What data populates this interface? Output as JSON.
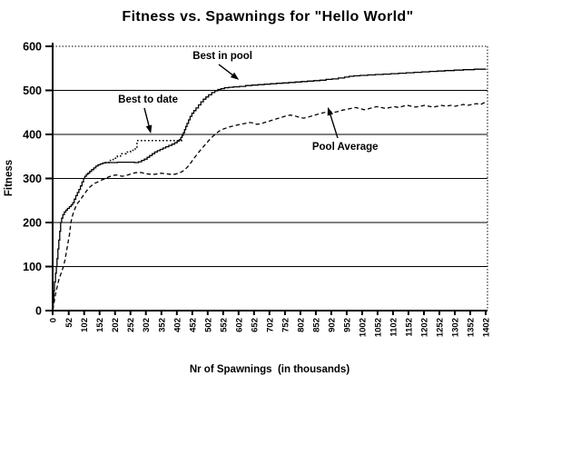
{
  "chart_data": {
    "type": "line",
    "title": "Fitness vs. Spawnings for \"Hello World\"",
    "xlabel": "Nr of Spawnings  (in thousands)",
    "ylabel": "Fitness",
    "xlim": [
      0,
      1410
    ],
    "ylim": [
      0,
      600
    ],
    "grid": "horizontal solid lines at 100..500, dotted top border at 600, dotted right border",
    "legend_position": "none (arrow annotations instead)",
    "x_ticks": [
      0,
      52,
      102,
      152,
      202,
      252,
      302,
      352,
      402,
      452,
      502,
      552,
      602,
      652,
      702,
      752,
      802,
      852,
      902,
      952,
      1002,
      1052,
      1102,
      1152,
      1202,
      1252,
      1302,
      1352,
      1402
    ],
    "y_ticks": [
      0,
      100,
      200,
      300,
      400,
      500,
      600
    ],
    "series": [
      {
        "name": "Best in pool",
        "style": "solid",
        "interp": "step",
        "points": [
          [
            0,
            5
          ],
          [
            2,
            25
          ],
          [
            4,
            45
          ],
          [
            6,
            65
          ],
          [
            9,
            85
          ],
          [
            12,
            100
          ],
          [
            14,
            118
          ],
          [
            17,
            140
          ],
          [
            20,
            160
          ],
          [
            23,
            180
          ],
          [
            26,
            200
          ],
          [
            29,
            210
          ],
          [
            33,
            218
          ],
          [
            38,
            224
          ],
          [
            43,
            228
          ],
          [
            48,
            232
          ],
          [
            54,
            236
          ],
          [
            60,
            240
          ],
          [
            65,
            245
          ],
          [
            70,
            253
          ],
          [
            75,
            261
          ],
          [
            80,
            268
          ],
          [
            85,
            275
          ],
          [
            90,
            283
          ],
          [
            95,
            292
          ],
          [
            100,
            300
          ],
          [
            104,
            305
          ],
          [
            109,
            309
          ],
          [
            114,
            312
          ],
          [
            120,
            316
          ],
          [
            126,
            320
          ],
          [
            133,
            324
          ],
          [
            140,
            328
          ],
          [
            147,
            331
          ],
          [
            154,
            333
          ],
          [
            162,
            335
          ],
          [
            172,
            336
          ],
          [
            190,
            336
          ],
          [
            210,
            337
          ],
          [
            230,
            337
          ],
          [
            250,
            337
          ],
          [
            265,
            336
          ],
          [
            278,
            338
          ],
          [
            288,
            341
          ],
          [
            297,
            344
          ],
          [
            306,
            348
          ],
          [
            314,
            352
          ],
          [
            322,
            356
          ],
          [
            330,
            360
          ],
          [
            339,
            363
          ],
          [
            348,
            366
          ],
          [
            357,
            369
          ],
          [
            366,
            372
          ],
          [
            376,
            375
          ],
          [
            386,
            378
          ],
          [
            395,
            381
          ],
          [
            403,
            385
          ],
          [
            410,
            388
          ],
          [
            415,
            393
          ],
          [
            419,
            398
          ],
          [
            423,
            404
          ],
          [
            427,
            411
          ],
          [
            431,
            418
          ],
          [
            435,
            425
          ],
          [
            440,
            433
          ],
          [
            445,
            441
          ],
          [
            451,
            448
          ],
          [
            457,
            454
          ],
          [
            464,
            460
          ],
          [
            472,
            467
          ],
          [
            480,
            474
          ],
          [
            488,
            480
          ],
          [
            496,
            485
          ],
          [
            505,
            490
          ],
          [
            515,
            495
          ],
          [
            525,
            499
          ],
          [
            535,
            502
          ],
          [
            545,
            504
          ],
          [
            556,
            506
          ],
          [
            570,
            507
          ],
          [
            585,
            508
          ],
          [
            605,
            509
          ],
          [
            625,
            511
          ],
          [
            645,
            512
          ],
          [
            665,
            513
          ],
          [
            685,
            514
          ],
          [
            705,
            515
          ],
          [
            725,
            516
          ],
          [
            745,
            517
          ],
          [
            765,
            518
          ],
          [
            785,
            519
          ],
          [
            805,
            520
          ],
          [
            825,
            521
          ],
          [
            845,
            522
          ],
          [
            865,
            523
          ],
          [
            885,
            525
          ],
          [
            905,
            526
          ],
          [
            925,
            528
          ],
          [
            945,
            530
          ],
          [
            960,
            532
          ],
          [
            975,
            533
          ],
          [
            995,
            534
          ],
          [
            1020,
            535
          ],
          [
            1045,
            536
          ],
          [
            1070,
            537
          ],
          [
            1095,
            538
          ],
          [
            1120,
            539
          ],
          [
            1145,
            540
          ],
          [
            1170,
            541
          ],
          [
            1195,
            542
          ],
          [
            1220,
            543
          ],
          [
            1245,
            544
          ],
          [
            1270,
            545
          ],
          [
            1300,
            546
          ],
          [
            1330,
            547
          ],
          [
            1365,
            548
          ],
          [
            1402,
            549
          ]
        ]
      },
      {
        "name": "Best to date",
        "style": "dotted",
        "interp": "step",
        "points": [
          [
            168,
            336
          ],
          [
            182,
            341
          ],
          [
            196,
            346
          ],
          [
            210,
            351
          ],
          [
            224,
            356
          ],
          [
            238,
            360
          ],
          [
            252,
            364
          ],
          [
            264,
            367
          ],
          [
            273,
            386
          ],
          [
            412,
            386
          ],
          [
            418,
            395
          ]
        ]
      },
      {
        "name": "Pool Average",
        "style": "dashed",
        "interp": "linear",
        "points": [
          [
            0,
            2
          ],
          [
            5,
            20
          ],
          [
            10,
            40
          ],
          [
            15,
            55
          ],
          [
            20,
            70
          ],
          [
            25,
            80
          ],
          [
            30,
            90
          ],
          [
            35,
            100
          ],
          [
            40,
            115
          ],
          [
            45,
            135
          ],
          [
            50,
            155
          ],
          [
            55,
            175
          ],
          [
            59,
            200
          ],
          [
            64,
            215
          ],
          [
            70,
            228
          ],
          [
            76,
            238
          ],
          [
            82,
            245
          ],
          [
            88,
            250
          ],
          [
            94,
            256
          ],
          [
            100,
            262
          ],
          [
            108,
            270
          ],
          [
            116,
            278
          ],
          [
            126,
            284
          ],
          [
            136,
            289
          ],
          [
            146,
            292
          ],
          [
            157,
            296
          ],
          [
            168,
            299
          ],
          [
            180,
            303
          ],
          [
            192,
            306
          ],
          [
            204,
            308
          ],
          [
            214,
            307
          ],
          [
            224,
            305
          ],
          [
            234,
            306
          ],
          [
            244,
            308
          ],
          [
            256,
            311
          ],
          [
            268,
            313
          ],
          [
            280,
            314
          ],
          [
            290,
            313
          ],
          [
            300,
            311
          ],
          [
            312,
            310
          ],
          [
            324,
            309
          ],
          [
            336,
            310
          ],
          [
            350,
            312
          ],
          [
            362,
            311
          ],
          [
            375,
            310
          ],
          [
            388,
            309
          ],
          [
            398,
            310
          ],
          [
            408,
            312
          ],
          [
            418,
            315
          ],
          [
            428,
            320
          ],
          [
            438,
            327
          ],
          [
            448,
            336
          ],
          [
            458,
            346
          ],
          [
            468,
            355
          ],
          [
            478,
            364
          ],
          [
            488,
            372
          ],
          [
            498,
            380
          ],
          [
            508,
            388
          ],
          [
            518,
            395
          ],
          [
            528,
            401
          ],
          [
            538,
            407
          ],
          [
            548,
            411
          ],
          [
            560,
            414
          ],
          [
            572,
            417
          ],
          [
            584,
            419
          ],
          [
            596,
            421
          ],
          [
            610,
            423
          ],
          [
            624,
            425
          ],
          [
            638,
            427
          ],
          [
            650,
            426
          ],
          [
            660,
            423
          ],
          [
            672,
            424
          ],
          [
            686,
            427
          ],
          [
            700,
            430
          ],
          [
            714,
            433
          ],
          [
            728,
            436
          ],
          [
            742,
            439
          ],
          [
            756,
            442
          ],
          [
            770,
            444
          ],
          [
            784,
            442
          ],
          [
            798,
            439
          ],
          [
            812,
            437
          ],
          [
            826,
            439
          ],
          [
            840,
            442
          ],
          [
            854,
            445
          ],
          [
            868,
            448
          ],
          [
            882,
            450
          ],
          [
            896,
            452
          ],
          [
            910,
            450
          ],
          [
            924,
            452
          ],
          [
            938,
            455
          ],
          [
            952,
            457
          ],
          [
            966,
            459
          ],
          [
            980,
            461
          ],
          [
            994,
            459
          ],
          [
            1008,
            456
          ],
          [
            1022,
            458
          ],
          [
            1036,
            461
          ],
          [
            1050,
            463
          ],
          [
            1064,
            461
          ],
          [
            1078,
            459
          ],
          [
            1092,
            461
          ],
          [
            1106,
            463
          ],
          [
            1120,
            461
          ],
          [
            1134,
            464
          ],
          [
            1148,
            466
          ],
          [
            1162,
            464
          ],
          [
            1176,
            462
          ],
          [
            1190,
            464
          ],
          [
            1204,
            466
          ],
          [
            1218,
            464
          ],
          [
            1232,
            462
          ],
          [
            1246,
            464
          ],
          [
            1260,
            466
          ],
          [
            1274,
            464
          ],
          [
            1288,
            466
          ],
          [
            1302,
            464
          ],
          [
            1316,
            466
          ],
          [
            1330,
            468
          ],
          [
            1344,
            466
          ],
          [
            1358,
            468
          ],
          [
            1372,
            470
          ],
          [
            1386,
            468
          ],
          [
            1400,
            473
          ]
        ]
      }
    ],
    "annotations": [
      {
        "label": "Best in pool",
        "text_at": [
          550,
          577
        ],
        "arrow": [
          [
            538,
            559
          ],
          [
            603,
            524
          ]
        ]
      },
      {
        "label": "Best to date",
        "text_at": [
          309,
          478
        ],
        "arrow": [
          [
            297,
            460
          ],
          [
            318,
            402
          ]
        ]
      },
      {
        "label": "Pool Average",
        "text_at": [
          947,
          371
        ],
        "arrow": [
          [
            923,
            392
          ],
          [
            891,
            462
          ]
        ]
      }
    ]
  }
}
